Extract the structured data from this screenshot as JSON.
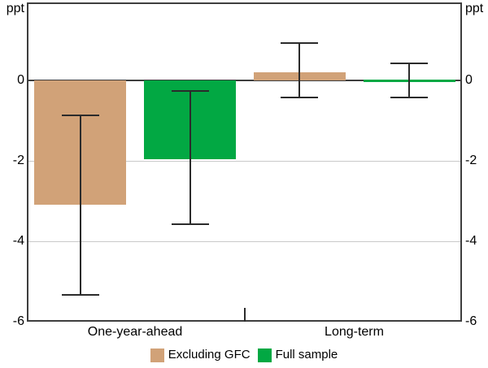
{
  "chart": {
    "unit_left": "ppt",
    "unit_right": "ppt"
  },
  "legend": [
    {
      "label": "Excluding GFC",
      "color": "#d1a278"
    },
    {
      "label": "Full sample",
      "color": "#02a843"
    }
  ],
  "chart_data": {
    "type": "bar",
    "categories": [
      "One-year-ahead",
      "Long-term"
    ],
    "series": [
      {
        "name": "Excluding GFC",
        "color": "#d1a278",
        "values": [
          -3.1,
          0.2
        ],
        "ci": [
          [
            -5.35,
            -0.85
          ],
          [
            -0.45,
            0.95
          ]
        ]
      },
      {
        "name": "Full sample",
        "color": "#02a843",
        "values": [
          -1.95,
          0.02
        ],
        "ci": [
          [
            -3.6,
            -0.25
          ],
          [
            -0.45,
            0.45
          ]
        ]
      }
    ],
    "title": "",
    "xlabel": "",
    "ylabel": "ppt",
    "ylim": [
      -6,
      1.94
    ],
    "yticks": [
      {
        "label": "0",
        "value": 0
      },
      {
        "label": "-2",
        "value": -2
      },
      {
        "label": "-4",
        "value": -4
      },
      {
        "label": "-6",
        "value": -6
      }
    ],
    "grid": "horizontal-light",
    "zero_line": true,
    "legend_position": "bottom-center",
    "error_bar_color": "#2b2b2b",
    "frame_color": "#3e3e3e",
    "gridline_color": "#c9c9c9"
  }
}
